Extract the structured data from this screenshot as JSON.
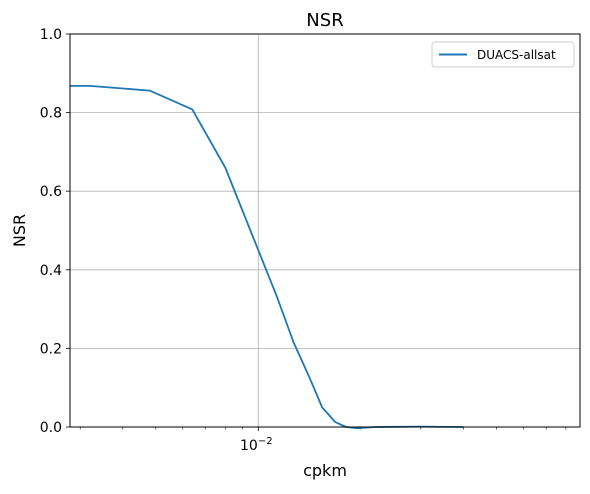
{
  "chart_data": {
    "type": "line",
    "title": "NSR",
    "xlabel": "cpkm",
    "ylabel": "NSR",
    "x_scale": "log",
    "xlim": [
      0.0028,
      0.088
    ],
    "ylim": [
      0,
      1.0
    ],
    "x_ticks": [
      {
        "value": 0.01,
        "base": "10",
        "exp": "−2"
      }
    ],
    "y_ticks": [
      {
        "value": 0.0,
        "label": "0.0"
      },
      {
        "value": 0.2,
        "label": "0.2"
      },
      {
        "value": 0.4,
        "label": "0.4"
      },
      {
        "value": 0.6,
        "label": "0.6"
      },
      {
        "value": 0.8,
        "label": "0.8"
      },
      {
        "value": 1.0,
        "label": "1.0"
      }
    ],
    "grid": true,
    "legend_position": "top-right",
    "series": [
      {
        "name": "DUACS-allsat",
        "color": "#1f77b4",
        "x": [
          0.0028,
          0.0032,
          0.0048,
          0.0064,
          0.008,
          0.01,
          0.0113,
          0.0127,
          0.0141,
          0.0154,
          0.0168,
          0.0181,
          0.0195,
          0.022,
          0.03,
          0.04
        ],
        "y": [
          0.868,
          0.868,
          0.856,
          0.808,
          0.66,
          0.45,
          0.335,
          0.215,
          0.128,
          0.05,
          0.013,
          0.0,
          -0.003,
          0.0,
          0.001,
          0.0
        ]
      }
    ]
  }
}
